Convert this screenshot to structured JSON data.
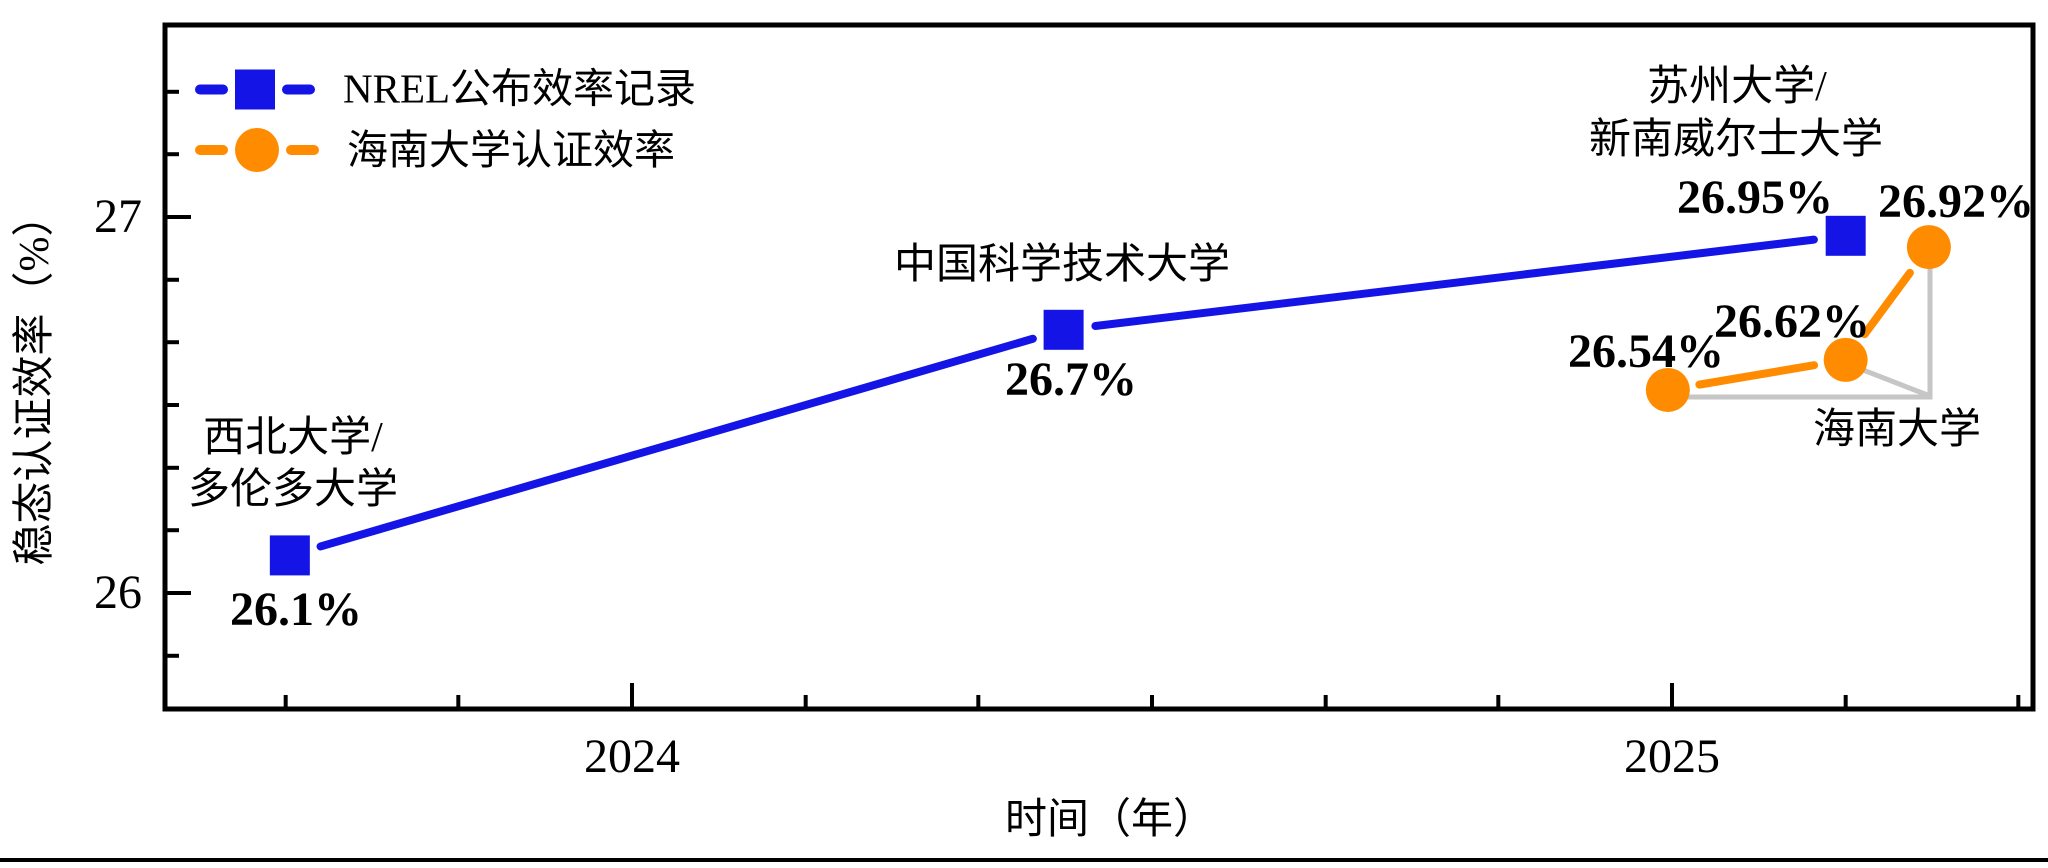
{
  "chart_data": {
    "type": "line",
    "title": "",
    "xlabel": "时间（年）",
    "ylabel": "稳态认证效率（%）",
    "xlim": [
      2023.55,
      2025.35
    ],
    "ylim": [
      25.69,
      27.51
    ],
    "x_tick_labels": [
      "2024",
      "2025"
    ],
    "x_tick_values": [
      2024,
      2025
    ],
    "y_tick_labels": [
      "27",
      "26"
    ],
    "y_tick_values": [
      27,
      26
    ],
    "grid": "off",
    "legend_position": "upper-left",
    "series": [
      {
        "name": "NREL公布效率记录",
        "color": "#1414e6",
        "marker": "square",
        "line_style": "dashed",
        "x": [
          2023.671,
          2024.415,
          2025.167
        ],
        "y": [
          26.1,
          26.7,
          26.95
        ],
        "point_labels": [
          "26.1%",
          "26.7%",
          "26.95%"
        ]
      },
      {
        "name": "海南大学认证效率",
        "color": "#ff8c00",
        "marker": "circle",
        "line_style": "dashed",
        "x": [
          2024.996,
          2025.167,
          2025.247
        ],
        "y": [
          26.54,
          26.62,
          26.92
        ],
        "point_labels": [
          "26.54%",
          "26.62%",
          "26.92%"
        ]
      }
    ],
    "annotations": {
      "nw": {
        "line1": "西北大学/",
        "line2": "多伦多大学"
      },
      "ustc": {
        "text": "中国科学技术大学"
      },
      "suzhou": {
        "line1": "苏州大学/",
        "line2": "新南威尔士大学"
      },
      "hainan": {
        "text": "海南大学"
      }
    },
    "colors": {
      "axis": "#000000",
      "connector_gray": "#c6c6c6",
      "background": "#ffffff"
    }
  }
}
